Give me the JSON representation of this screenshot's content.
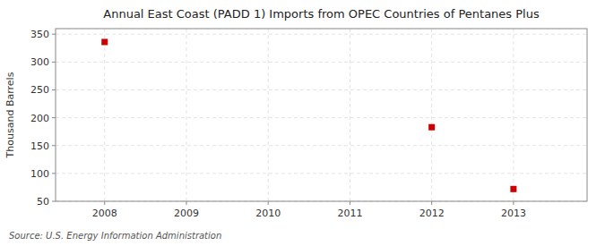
{
  "chart_data": {
    "type": "scatter",
    "title": "Annual East Coast (PADD 1) Imports from OPEC Countries of Pentanes Plus",
    "ylabel": "Thousand Barrels",
    "annotations": [
      "Source: U.S. Energy Information Administration"
    ],
    "x": [
      2008,
      2012,
      2013
    ],
    "values": [
      336,
      183,
      72
    ],
    "color": "#cc0000",
    "marker": "square",
    "xlim": [
      2007.4,
      2013.9
    ],
    "ylim": [
      50,
      360
    ],
    "xticks": [
      2008,
      2009,
      2010,
      2011,
      2012,
      2013
    ],
    "yticks": [
      50,
      100,
      150,
      200,
      250,
      300,
      350
    ],
    "grid": true
  }
}
